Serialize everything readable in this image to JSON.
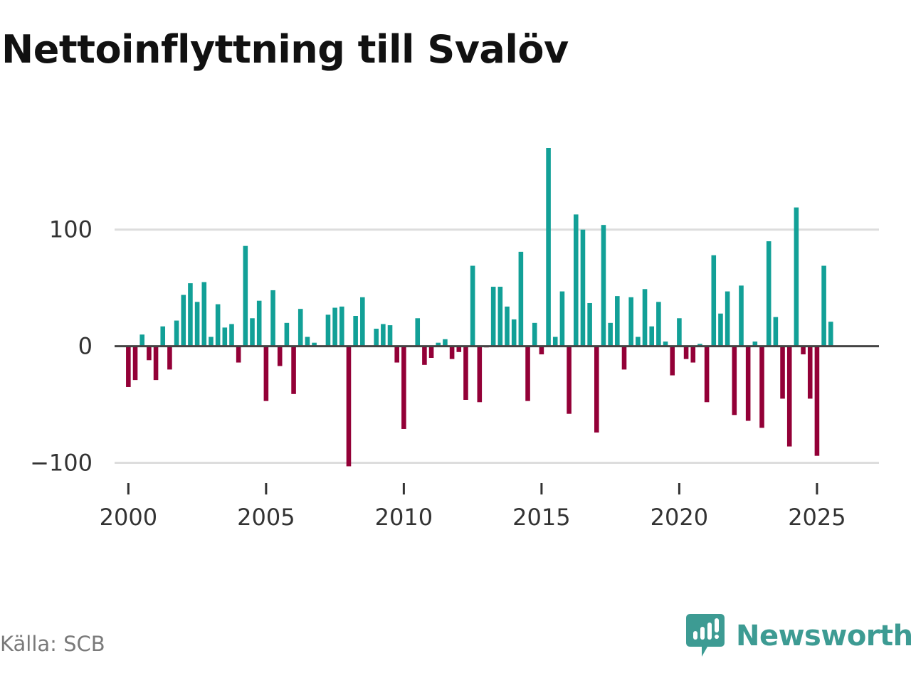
{
  "title": "Nettoinflyttning till Svalöv",
  "source": "Källa: SCB",
  "brand": {
    "name": "Newsworthy",
    "icon": "newsworthy-logo-icon",
    "color": "#3d9b93"
  },
  "colors": {
    "positive": "#12a097",
    "negative": "#930037",
    "zero_line": "#444444",
    "grid": "#dddddd"
  },
  "chart_data": {
    "type": "bar",
    "title": "Nettoinflyttning till Svalöv",
    "xlabel": "",
    "ylabel": "",
    "frequency": "quarterly",
    "x_start": 2000.0,
    "x_step": 0.25,
    "xlim": [
      1999.5,
      2027.25
    ],
    "ylim": [
      -118,
      170
    ],
    "y_ticks": [
      {
        "value": 100,
        "label": "100"
      },
      {
        "value": 0,
        "label": "0"
      },
      {
        "value": -100,
        "label": "−100"
      }
    ],
    "x_ticks": [
      {
        "value": 2000,
        "label": "2000"
      },
      {
        "value": 2005,
        "label": "2005"
      },
      {
        "value": 2010,
        "label": "2010"
      },
      {
        "value": 2015,
        "label": "2015"
      },
      {
        "value": 2020,
        "label": "2020"
      },
      {
        "value": 2025,
        "label": "2025"
      }
    ],
    "values": [
      -35,
      -29,
      10,
      -12,
      -29,
      17,
      -20,
      22,
      44,
      54,
      38,
      55,
      8,
      36,
      16,
      19,
      -14,
      86,
      24,
      39,
      -47,
      48,
      -17,
      20,
      -41,
      32,
      8,
      3,
      0,
      27,
      33,
      34,
      -103,
      26,
      42,
      0,
      15,
      19,
      18,
      -14,
      -71,
      0,
      24,
      -16,
      -10,
      3,
      6,
      -11,
      -5,
      -46,
      69,
      -48,
      -1,
      51,
      51,
      34,
      23,
      81,
      -47,
      20,
      -7,
      170,
      8,
      47,
      -58,
      113,
      100,
      37,
      -74,
      104,
      20,
      43,
      -20,
      42,
      8,
      49,
      17,
      38,
      4,
      -25,
      24,
      -11,
      -14,
      2,
      -48,
      78,
      28,
      47,
      -59,
      52,
      -64,
      4,
      -70,
      90,
      25,
      -45,
      -86,
      119,
      -7,
      -45,
      -94,
      69,
      21
    ]
  }
}
